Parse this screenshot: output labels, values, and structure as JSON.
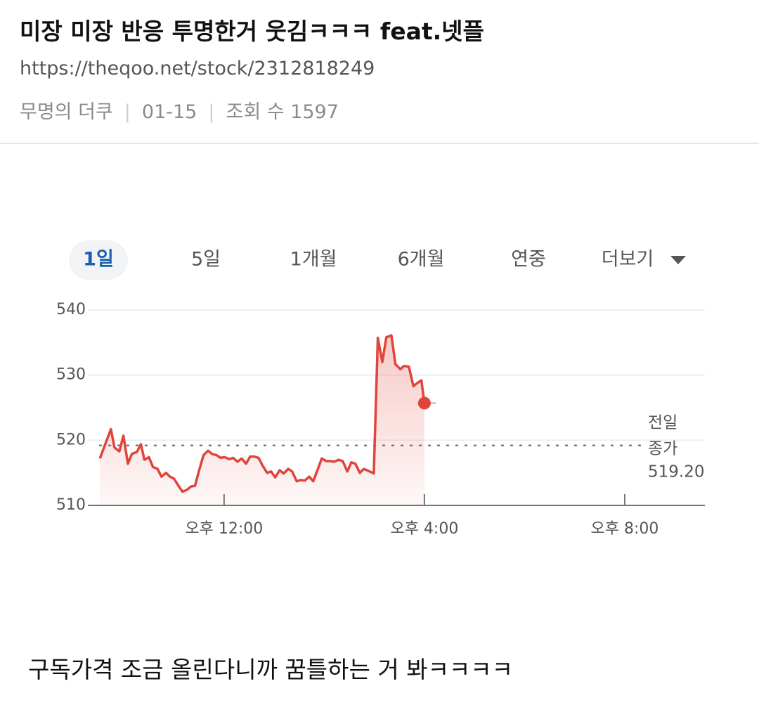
{
  "post": {
    "title": "미장 미장 반응 투명한거 웃김ㅋㅋㅋ feat.넷플",
    "url": "https://theqoo.net/stock/2312818249",
    "author": "무명의 더쿠",
    "date": "01-15",
    "views": "조회 수 1597"
  },
  "tabs": {
    "items": [
      "1일",
      "5일",
      "1개월",
      "6개월",
      "연중",
      "더보기"
    ],
    "selected": 0
  },
  "chart_data": {
    "type": "line",
    "x": [
      9.52,
      9.74,
      9.81,
      9.91,
      9.99,
      10.08,
      10.16,
      10.26,
      10.34,
      10.41,
      10.5,
      10.58,
      10.67,
      10.75,
      10.84,
      10.92,
      11.0,
      11.09,
      11.17,
      11.26,
      11.34,
      11.42,
      11.51,
      11.59,
      11.68,
      11.76,
      11.85,
      11.93,
      12.01,
      12.1,
      12.18,
      12.27,
      12.35,
      12.44,
      12.52,
      12.6,
      12.69,
      12.77,
      12.86,
      12.94,
      13.02,
      13.11,
      13.19,
      13.28,
      13.36,
      13.45,
      13.53,
      13.61,
      13.7,
      13.78,
      13.87,
      13.95,
      14.04,
      14.12,
      14.2,
      14.29,
      14.37,
      14.46,
      14.54,
      14.62,
      14.71,
      14.79,
      14.88,
      14.99,
      15.07,
      15.16,
      15.24,
      15.34,
      15.42,
      15.52,
      15.59,
      15.69,
      15.78,
      15.86,
      15.94,
      16.0
    ],
    "series": [
      {
        "name": "",
        "color": "#e0443a",
        "values": [
          517.2,
          521.7,
          518.9,
          518.3,
          520.7,
          516.4,
          517.9,
          518.2,
          519.4,
          517.0,
          517.4,
          515.9,
          515.6,
          514.4,
          515.0,
          514.4,
          514.1,
          513.0,
          512.1,
          512.4,
          512.9,
          513.0,
          515.6,
          517.7,
          518.4,
          517.9,
          517.7,
          517.3,
          517.4,
          517.1,
          517.3,
          516.7,
          517.2,
          516.4,
          517.5,
          517.5,
          517.3,
          516.1,
          515.0,
          515.2,
          514.3,
          515.4,
          514.9,
          515.6,
          515.2,
          513.7,
          513.9,
          513.8,
          514.4,
          513.7,
          515.5,
          517.2,
          516.8,
          516.8,
          516.7,
          517.0,
          516.8,
          515.2,
          516.6,
          516.4,
          515.0,
          515.6,
          515.3,
          514.9,
          535.7,
          532.0,
          535.8,
          536.1,
          531.7,
          530.9,
          531.4,
          531.3,
          528.3,
          528.8,
          529.2,
          525.7
        ]
      }
    ],
    "xlim": [
      9.28,
      21.6
    ],
    "xticks": [
      {
        "value": 12,
        "label": "오후 12:00"
      },
      {
        "value": 16,
        "label": "오후 4:00"
      },
      {
        "value": 20,
        "label": "오후 8:00"
      }
    ],
    "ylim": [
      510,
      540
    ],
    "yticks": [
      510,
      520,
      530,
      540
    ],
    "grid": true,
    "reference_line": {
      "label_lines": [
        "전일",
        "종가"
      ],
      "value": 519.2,
      "value_label": "519.20"
    }
  },
  "body": "구독가격 조금 올린다니까 꿈틀하는 거 봐ㅋㅋㅋㅋ"
}
